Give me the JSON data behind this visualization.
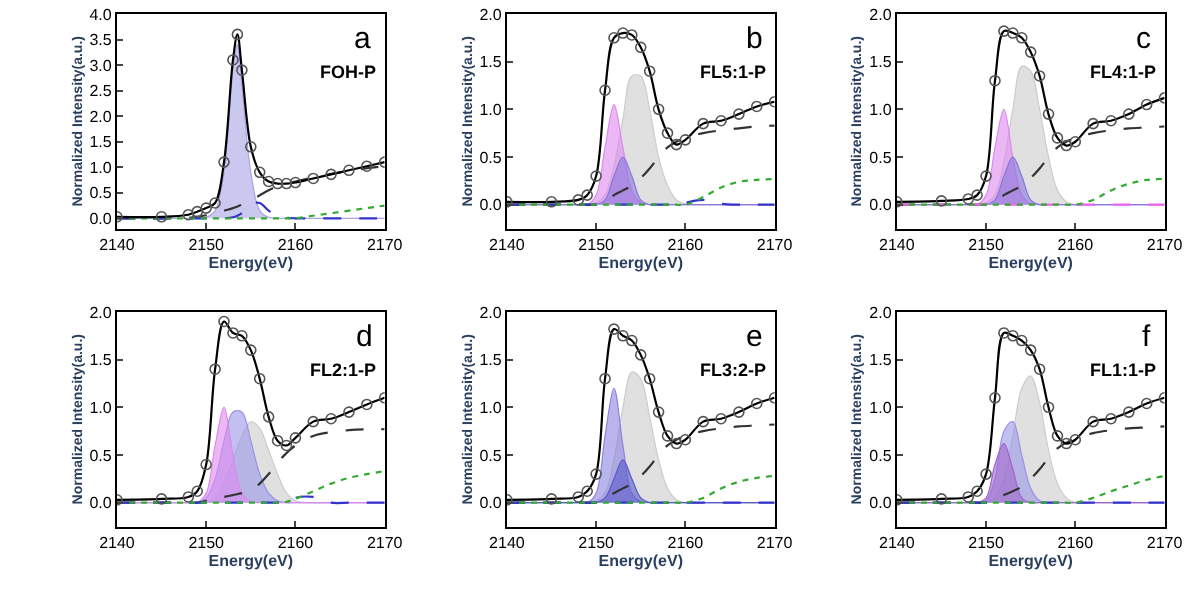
{
  "chart_data": [
    {
      "type": "line",
      "xlabel": "Energy(eV)",
      "ylabel": "Normalized Intensity(a.u.)",
      "annotations": [
        "a",
        "FOH-P"
      ],
      "xlim": [
        2140,
        2170
      ],
      "xticks": [
        2140,
        2150,
        2160,
        2170
      ],
      "ylim": [
        -0.2,
        4.0
      ],
      "yticks": [
        {
          "value": 0,
          "label": "0.0"
        },
        {
          "value": 0.5,
          "label": "0.5"
        },
        {
          "value": 1,
          "label": "1.0"
        },
        {
          "value": 1.5,
          "label": "1.5"
        },
        {
          "value": 2,
          "label": "2.0"
        },
        {
          "value": 2.5,
          "label": "2.5"
        },
        {
          "value": 3,
          "label": "3.0"
        },
        {
          "value": 3.5,
          "label": "3.5"
        },
        {
          "value": 4,
          "label": "4.0"
        }
      ],
      "x": [
        2140,
        2145,
        2148,
        2149,
        2150,
        2151,
        2152,
        2153,
        2153.5,
        2154,
        2155,
        2156,
        2157,
        2158,
        2159,
        2160,
        2162,
        2164,
        2166,
        2168,
        2170
      ],
      "series": [
        {
          "type": "area",
          "color": "#a9a3e6",
          "values": [
            0,
            0,
            0,
            0,
            0.02,
            0.15,
            0.9,
            2.9,
            3.4,
            2.6,
            0.9,
            0.15,
            0.02,
            0,
            0,
            0,
            0,
            0,
            0,
            0,
            0
          ]
        },
        {
          "line_style": "dashed",
          "color": "#333333",
          "values": [
            0,
            0,
            0.01,
            0.03,
            0.06,
            0.1,
            0.15,
            0.2,
            0.23,
            0.27,
            0.35,
            0.45,
            0.55,
            0.62,
            0.68,
            0.72,
            0.8,
            0.87,
            0.93,
            0.98,
            1.02
          ]
        },
        {
          "line_style": "dashed",
          "color": "#3333cc",
          "values": [
            0,
            0,
            0,
            0,
            0,
            0,
            0,
            0.02,
            0.05,
            0.1,
            0.28,
            0.3,
            0.15,
            0.05,
            0.01,
            0,
            0,
            0,
            0,
            0,
            0
          ]
        },
        {
          "line_style": "dotted",
          "color": "#33aa33",
          "values": [
            0,
            0,
            0,
            0,
            0,
            0,
            0,
            0,
            0,
            0,
            0,
            0,
            0,
            0,
            0,
            0,
            0.05,
            0.1,
            0.15,
            0.2,
            0.25
          ]
        },
        {
          "color": "#000000",
          "values": [
            0.03,
            0.03,
            0.07,
            0.13,
            0.2,
            0.3,
            1.1,
            3.1,
            3.6,
            2.9,
            1.4,
            0.9,
            0.72,
            0.68,
            0.68,
            0.7,
            0.78,
            0.86,
            0.94,
            1.02,
            1.1
          ]
        },
        {
          "type": "scatter",
          "marker": "circle",
          "color": "#555555",
          "values": [
            0.03,
            0.03,
            0.07,
            0.13,
            0.2,
            0.3,
            1.1,
            3.1,
            3.6,
            2.9,
            1.4,
            0.9,
            0.72,
            0.68,
            0.68,
            0.7,
            0.78,
            0.86,
            0.94,
            1.02,
            1.1
          ]
        }
      ]
    },
    {
      "type": "line",
      "xlabel": "Energy(eV)",
      "ylabel": "Normalized Intensity(a.u.)",
      "annotations": [
        "b",
        "FL5:1-P"
      ],
      "xlim": [
        2140,
        2170
      ],
      "xticks": [
        2140,
        2150,
        2160,
        2170
      ],
      "ylim": [
        -0.25,
        2.0
      ],
      "yticks": [
        {
          "value": 0,
          "label": "0.0"
        },
        {
          "value": 0.5,
          "label": "0.5"
        },
        {
          "value": 1,
          "label": "1.0"
        },
        {
          "value": 1.5,
          "label": "1.5"
        },
        {
          "value": 2,
          "label": "2.0"
        }
      ],
      "x": [
        2140,
        2145,
        2148,
        2149,
        2150,
        2151,
        2152,
        2153,
        2154,
        2155,
        2156,
        2157,
        2158,
        2159,
        2160,
        2162,
        2164,
        2166,
        2168,
        2170
      ],
      "series": [
        {
          "type": "area",
          "color": "#cccccc",
          "values": [
            0,
            0,
            0,
            0,
            0.02,
            0.1,
            0.4,
            0.9,
            1.35,
            1.35,
            1.0,
            0.5,
            0.2,
            0.05,
            0.01,
            0,
            0,
            0,
            0,
            0
          ]
        },
        {
          "type": "area",
          "color": "#dd88ee",
          "values": [
            0,
            0,
            0,
            0,
            0.1,
            0.6,
            1.05,
            0.6,
            0.15,
            0.02,
            0,
            0,
            0,
            0,
            0,
            0,
            0,
            0,
            0,
            0
          ]
        },
        {
          "type": "area",
          "color": "#8877dd",
          "values": [
            0,
            0,
            0,
            0,
            0,
            0.05,
            0.3,
            0.5,
            0.3,
            0.05,
            0,
            0,
            0,
            0,
            0,
            0,
            0,
            0,
            0,
            0
          ]
        },
        {
          "line_style": "dashed",
          "color": "#333333",
          "values": [
            0,
            0,
            0,
            0,
            0,
            0.03,
            0.1,
            0.15,
            0.2,
            0.28,
            0.38,
            0.5,
            0.6,
            0.66,
            0.7,
            0.75,
            0.78,
            0.8,
            0.82,
            0.83
          ]
        },
        {
          "line_style": "dashed",
          "color": "#3333cc",
          "values": [
            0,
            0,
            0,
            0,
            0,
            0,
            0,
            0,
            0,
            0,
            0,
            0,
            0,
            0,
            0.02,
            0.05,
            0.01,
            0,
            0,
            0
          ]
        },
        {
          "line_style": "dotted",
          "color": "#33aa33",
          "values": [
            0,
            0,
            0,
            0,
            0,
            0,
            0,
            0,
            0,
            0,
            0,
            0,
            0,
            0,
            0,
            0.08,
            0.18,
            0.24,
            0.26,
            0.27
          ]
        },
        {
          "color": "#000000",
          "values": [
            0.03,
            0.03,
            0.05,
            0.1,
            0.3,
            1.2,
            1.75,
            1.8,
            1.78,
            1.65,
            1.4,
            1.0,
            0.75,
            0.63,
            0.68,
            0.85,
            0.88,
            0.95,
            1.03,
            1.08
          ]
        },
        {
          "type": "scatter",
          "marker": "circle",
          "color": "#555555",
          "values": [
            0.03,
            0.03,
            0.05,
            0.1,
            0.3,
            1.2,
            1.75,
            1.8,
            1.78,
            1.65,
            1.4,
            1.0,
            0.75,
            0.63,
            0.68,
            0.85,
            0.88,
            0.95,
            1.03,
            1.08
          ]
        }
      ]
    },
    {
      "type": "line",
      "xlabel": "Energy(eV)",
      "ylabel": "Normalized Intensity(a.u.)",
      "annotations": [
        "c",
        "FL4:1-P"
      ],
      "xlim": [
        2140,
        2170
      ],
      "xticks": [
        2140,
        2150,
        2160,
        2170
      ],
      "ylim": [
        -0.25,
        2.0
      ],
      "yticks": [
        {
          "value": 0,
          "label": "0.0"
        },
        {
          "value": 0.5,
          "label": "0.5"
        },
        {
          "value": 1,
          "label": "1.0"
        },
        {
          "value": 1.5,
          "label": "1.5"
        },
        {
          "value": 2,
          "label": "2.0"
        }
      ],
      "x": [
        2140,
        2145,
        2148,
        2149,
        2150,
        2151,
        2152,
        2153,
        2154,
        2155,
        2156,
        2157,
        2158,
        2159,
        2160,
        2162,
        2164,
        2166,
        2168,
        2170
      ],
      "series": [
        {
          "type": "area",
          "color": "#cccccc",
          "values": [
            0,
            0,
            0,
            0,
            0.02,
            0.1,
            0.45,
            1.0,
            1.45,
            1.4,
            1.0,
            0.5,
            0.15,
            0.03,
            0,
            0,
            0,
            0,
            0,
            0
          ]
        },
        {
          "type": "area",
          "color": "#dd88ee",
          "values": [
            0,
            0,
            0,
            0,
            0.1,
            0.6,
            1.0,
            0.5,
            0.1,
            0.01,
            0,
            0,
            0,
            0,
            0,
            0,
            0,
            0,
            0,
            0
          ]
        },
        {
          "type": "area",
          "color": "#8877dd",
          "values": [
            0,
            0,
            0,
            0,
            0,
            0.05,
            0.3,
            0.5,
            0.3,
            0.05,
            0,
            0,
            0,
            0,
            0,
            0,
            0,
            0,
            0,
            0
          ]
        },
        {
          "line_style": "dashed",
          "color": "#333333",
          "values": [
            0,
            0,
            0,
            0,
            0,
            0.03,
            0.1,
            0.15,
            0.2,
            0.28,
            0.38,
            0.5,
            0.6,
            0.66,
            0.7,
            0.75,
            0.78,
            0.8,
            0.81,
            0.82
          ]
        },
        {
          "line_style": "dashed",
          "color": "#ee66ee",
          "values": [
            0,
            0,
            0,
            0,
            0,
            0,
            0,
            0,
            0,
            0,
            0,
            0,
            0,
            0,
            0,
            0,
            0,
            0,
            0,
            0
          ]
        },
        {
          "line_style": "dotted",
          "color": "#33aa33",
          "values": [
            0,
            0,
            0,
            0,
            0,
            0,
            0,
            0,
            0,
            0,
            0,
            0,
            0,
            0,
            0,
            0.05,
            0.15,
            0.22,
            0.26,
            0.27
          ]
        },
        {
          "color": "#000000",
          "values": [
            0.03,
            0.04,
            0.06,
            0.1,
            0.3,
            1.3,
            1.82,
            1.8,
            1.75,
            1.6,
            1.35,
            0.95,
            0.7,
            0.62,
            0.66,
            0.85,
            0.88,
            0.95,
            1.05,
            1.12
          ]
        },
        {
          "type": "scatter",
          "marker": "circle",
          "color": "#555555",
          "values": [
            0.03,
            0.04,
            0.06,
            0.1,
            0.3,
            1.3,
            1.82,
            1.8,
            1.75,
            1.6,
            1.35,
            0.95,
            0.7,
            0.62,
            0.66,
            0.85,
            0.88,
            0.95,
            1.05,
            1.12
          ]
        }
      ]
    },
    {
      "type": "line",
      "xlabel": "Energy(eV)",
      "ylabel": "Normalized Intensity(a.u.)",
      "annotations": [
        "d",
        "FL2:1-P"
      ],
      "xlim": [
        2140,
        2170
      ],
      "xticks": [
        2140,
        2150,
        2160,
        2170
      ],
      "ylim": [
        -0.25,
        2.0
      ],
      "yticks": [
        {
          "value": 0,
          "label": "0.0"
        },
        {
          "value": 0.5,
          "label": "0.5"
        },
        {
          "value": 1,
          "label": "1.0"
        },
        {
          "value": 1.5,
          "label": "1.5"
        },
        {
          "value": 2,
          "label": "2.0"
        }
      ],
      "x": [
        2140,
        2145,
        2148,
        2149,
        2150,
        2151,
        2152,
        2153,
        2154,
        2155,
        2156,
        2157,
        2158,
        2159,
        2160,
        2162,
        2164,
        2166,
        2168,
        2170
      ],
      "series": [
        {
          "type": "area",
          "color": "#cccccc",
          "values": [
            0,
            0,
            0,
            0,
            0,
            0.05,
            0.2,
            0.45,
            0.7,
            0.85,
            0.78,
            0.55,
            0.3,
            0.1,
            0.02,
            0,
            0,
            0,
            0,
            0
          ]
        },
        {
          "type": "area",
          "color": "#9a94e8",
          "values": [
            0,
            0,
            0,
            0,
            0.05,
            0.25,
            0.65,
            0.95,
            0.95,
            0.65,
            0.3,
            0.1,
            0.02,
            0,
            0,
            0,
            0,
            0,
            0,
            0
          ]
        },
        {
          "type": "area",
          "color": "#dd88ee",
          "values": [
            0,
            0,
            0,
            0,
            0.1,
            0.6,
            1.0,
            0.5,
            0.1,
            0.01,
            0,
            0,
            0,
            0,
            0,
            0,
            0,
            0,
            0,
            0
          ]
        },
        {
          "line_style": "dashed",
          "color": "#333333",
          "values": [
            0,
            0,
            0,
            0,
            0.02,
            0.04,
            0.06,
            0.08,
            0.1,
            0.13,
            0.2,
            0.3,
            0.42,
            0.52,
            0.6,
            0.7,
            0.74,
            0.76,
            0.77,
            0.77
          ]
        },
        {
          "line_style": "dashed",
          "color": "#3333cc",
          "values": [
            0,
            0,
            0,
            0,
            0,
            0,
            0,
            0,
            0,
            0,
            0,
            0,
            0,
            0,
            0.05,
            0.06,
            0,
            0,
            0,
            0
          ]
        },
        {
          "line_style": "dotted",
          "color": "#33aa33",
          "values": [
            0,
            0,
            0,
            0,
            0,
            0,
            0,
            0,
            0,
            0,
            0,
            0,
            0,
            0.01,
            0.04,
            0.12,
            0.2,
            0.26,
            0.3,
            0.33
          ]
        },
        {
          "color": "#000000",
          "values": [
            0.03,
            0.04,
            0.06,
            0.12,
            0.4,
            1.4,
            1.9,
            1.78,
            1.75,
            1.6,
            1.3,
            0.9,
            0.65,
            0.6,
            0.68,
            0.85,
            0.88,
            0.95,
            1.03,
            1.1
          ]
        },
        {
          "type": "scatter",
          "marker": "circle",
          "color": "#555555",
          "values": [
            0.03,
            0.04,
            0.06,
            0.12,
            0.4,
            1.4,
            1.9,
            1.78,
            1.75,
            1.6,
            1.3,
            0.9,
            0.65,
            0.6,
            0.68,
            0.85,
            0.88,
            0.95,
            1.03,
            1.1
          ]
        }
      ]
    },
    {
      "type": "line",
      "xlabel": "Energy(eV)",
      "ylabel": "Normalized Intensity(a.u.)",
      "annotations": [
        "e",
        "FL3:2-P"
      ],
      "xlim": [
        2140,
        2170
      ],
      "xticks": [
        2140,
        2150,
        2160,
        2170
      ],
      "ylim": [
        -0.25,
        2.0
      ],
      "yticks": [
        {
          "value": 0,
          "label": "0.0"
        },
        {
          "value": 0.5,
          "label": "0.5"
        },
        {
          "value": 1,
          "label": "1.0"
        },
        {
          "value": 1.5,
          "label": "1.5"
        },
        {
          "value": 2,
          "label": "2.0"
        }
      ],
      "x": [
        2140,
        2145,
        2148,
        2149,
        2150,
        2151,
        2152,
        2153,
        2154,
        2155,
        2156,
        2157,
        2158,
        2159,
        2160,
        2162,
        2164,
        2166,
        2168,
        2170
      ],
      "series": [
        {
          "type": "area",
          "color": "#cccccc",
          "values": [
            0,
            0,
            0,
            0,
            0.02,
            0.1,
            0.45,
            1.0,
            1.37,
            1.3,
            0.9,
            0.45,
            0.15,
            0.03,
            0,
            0,
            0,
            0,
            0,
            0
          ]
        },
        {
          "type": "area",
          "color": "#8c82e0",
          "values": [
            0,
            0,
            0,
            0,
            0.1,
            0.7,
            1.2,
            0.6,
            0.1,
            0.01,
            0,
            0,
            0,
            0,
            0,
            0,
            0,
            0,
            0,
            0
          ]
        },
        {
          "type": "area",
          "color": "#5a5acc",
          "values": [
            0,
            0,
            0,
            0,
            0,
            0.05,
            0.25,
            0.45,
            0.25,
            0.05,
            0,
            0,
            0,
            0,
            0,
            0,
            0,
            0,
            0,
            0
          ]
        },
        {
          "line_style": "dashed",
          "color": "#333333",
          "values": [
            0,
            0,
            0,
            0,
            0,
            0.03,
            0.1,
            0.15,
            0.2,
            0.28,
            0.38,
            0.5,
            0.6,
            0.66,
            0.7,
            0.75,
            0.78,
            0.8,
            0.81,
            0.82
          ]
        },
        {
          "line_style": "dashed",
          "color": "#3333cc",
          "values": [
            0,
            0,
            0,
            0,
            0,
            0,
            0,
            0,
            0,
            0,
            0,
            0,
            0,
            0,
            0,
            0,
            0,
            0,
            0,
            0
          ]
        },
        {
          "line_style": "dotted",
          "color": "#33aa33",
          "values": [
            0,
            0,
            0,
            0,
            0,
            0,
            0,
            0,
            0,
            0,
            0,
            0,
            0,
            0,
            0,
            0.05,
            0.15,
            0.22,
            0.26,
            0.28
          ]
        },
        {
          "color": "#000000",
          "values": [
            0.03,
            0.04,
            0.06,
            0.12,
            0.3,
            1.3,
            1.82,
            1.75,
            1.7,
            1.55,
            1.3,
            0.95,
            0.7,
            0.62,
            0.66,
            0.85,
            0.88,
            0.95,
            1.04,
            1.1
          ]
        },
        {
          "type": "scatter",
          "marker": "circle",
          "color": "#555555",
          "values": [
            0.03,
            0.04,
            0.06,
            0.12,
            0.3,
            1.3,
            1.82,
            1.75,
            1.7,
            1.55,
            1.3,
            0.95,
            0.7,
            0.62,
            0.66,
            0.85,
            0.88,
            0.95,
            1.04,
            1.1
          ]
        }
      ]
    },
    {
      "type": "line",
      "xlabel": "Energy(eV)",
      "ylabel": "Normalized Intensity(a.u.)",
      "annotations": [
        "f",
        "FL1:1-P"
      ],
      "xlim": [
        2140,
        2170
      ],
      "xticks": [
        2140,
        2150,
        2160,
        2170
      ],
      "ylim": [
        -0.25,
        2.0
      ],
      "yticks": [
        {
          "value": 0,
          "label": "0.0"
        },
        {
          "value": 0.5,
          "label": "0.5"
        },
        {
          "value": 1,
          "label": "1.0"
        },
        {
          "value": 1.5,
          "label": "1.5"
        },
        {
          "value": 2,
          "label": "2.0"
        }
      ],
      "x": [
        2140,
        2145,
        2148,
        2149,
        2150,
        2151,
        2152,
        2153,
        2154,
        2155,
        2156,
        2157,
        2158,
        2159,
        2160,
        2162,
        2164,
        2166,
        2168,
        2170
      ],
      "series": [
        {
          "type": "area",
          "color": "#cccccc",
          "values": [
            0,
            0,
            0,
            0,
            0,
            0.05,
            0.25,
            0.7,
            1.2,
            1.33,
            1.05,
            0.55,
            0.2,
            0.05,
            0,
            0,
            0,
            0,
            0,
            0
          ]
        },
        {
          "type": "area",
          "color": "#9a94e8",
          "values": [
            0,
            0,
            0,
            0,
            0.02,
            0.25,
            0.75,
            0.85,
            0.5,
            0.15,
            0.02,
            0,
            0,
            0,
            0,
            0,
            0,
            0,
            0,
            0
          ]
        },
        {
          "type": "area",
          "color": "#a066cc",
          "values": [
            0,
            0,
            0,
            0,
            0.05,
            0.4,
            0.62,
            0.35,
            0.05,
            0,
            0,
            0,
            0,
            0,
            0,
            0,
            0,
            0,
            0,
            0
          ]
        },
        {
          "line_style": "dashed",
          "color": "#333333",
          "values": [
            0,
            0,
            0,
            0,
            0,
            0.03,
            0.08,
            0.12,
            0.17,
            0.25,
            0.35,
            0.47,
            0.57,
            0.63,
            0.67,
            0.73,
            0.76,
            0.78,
            0.79,
            0.8
          ]
        },
        {
          "line_style": "dashed",
          "color": "#3333cc",
          "values": [
            0,
            0,
            0,
            0,
            0,
            0,
            0,
            0,
            0,
            0,
            0,
            0,
            0,
            0,
            0,
            0,
            0,
            0,
            0,
            0
          ]
        },
        {
          "line_style": "dotted",
          "color": "#33aa33",
          "values": [
            0,
            0,
            0,
            0,
            0,
            0,
            0,
            0,
            0,
            0,
            0,
            0,
            0,
            0,
            0,
            0.05,
            0.12,
            0.18,
            0.24,
            0.28
          ]
        },
        {
          "color": "#000000",
          "values": [
            0.03,
            0.04,
            0.06,
            0.12,
            0.3,
            1.1,
            1.78,
            1.75,
            1.7,
            1.6,
            1.4,
            1.0,
            0.7,
            0.62,
            0.66,
            0.85,
            0.88,
            0.95,
            1.04,
            1.1
          ]
        },
        {
          "type": "scatter",
          "marker": "circle",
          "color": "#555555",
          "values": [
            0.03,
            0.04,
            0.06,
            0.12,
            0.3,
            1.1,
            1.78,
            1.75,
            1.7,
            1.6,
            1.4,
            1.0,
            0.7,
            0.62,
            0.66,
            0.85,
            0.88,
            0.95,
            1.04,
            1.1
          ]
        }
      ]
    }
  ]
}
